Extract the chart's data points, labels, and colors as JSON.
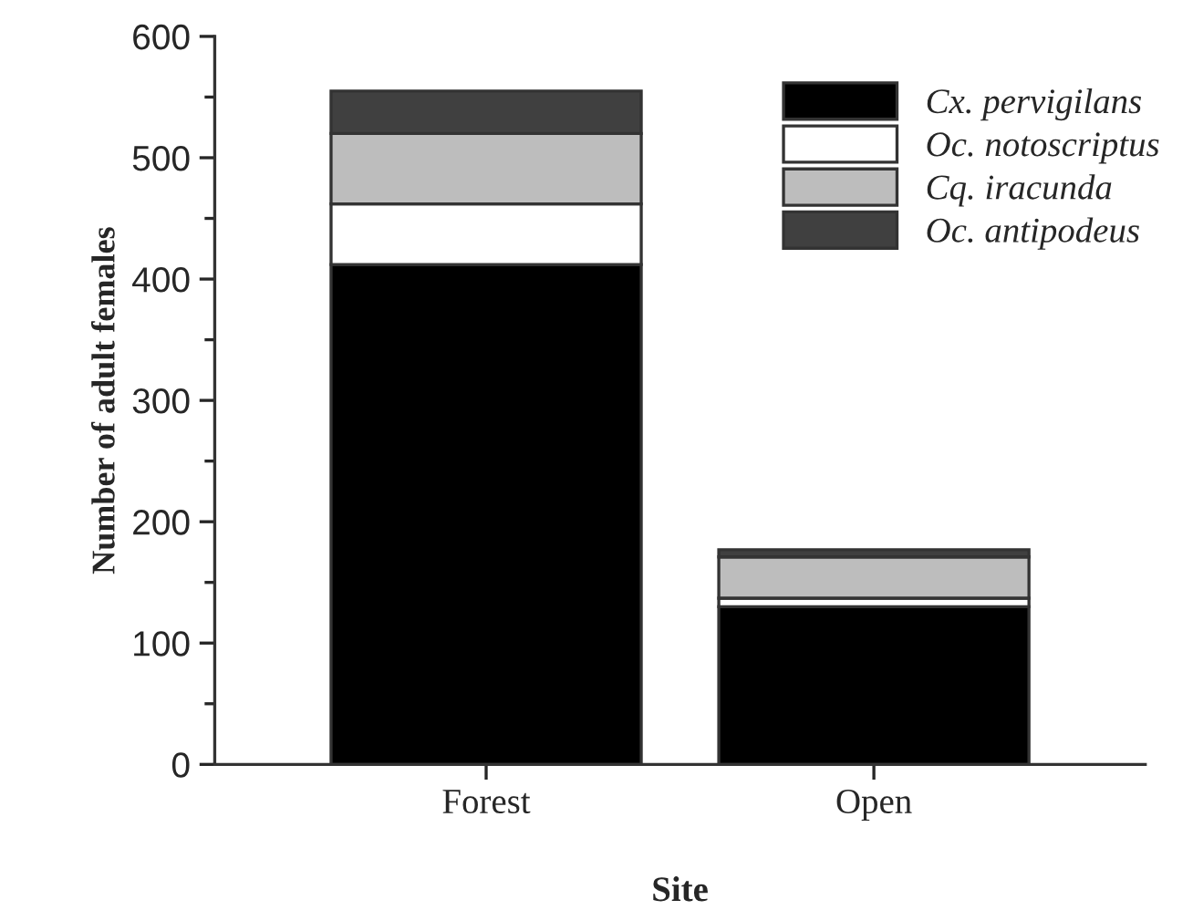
{
  "chart_data": {
    "type": "bar",
    "stacked": true,
    "xlabel": "Site",
    "ylabel": "Number of adult females",
    "categories": [
      "Forest",
      "Open"
    ],
    "series": [
      {
        "name": "Cx. pervigilans",
        "color": "#000000",
        "values": [
          412,
          130
        ]
      },
      {
        "name": "Oc. notoscriptus",
        "color": "#ffffff",
        "values": [
          50,
          7
        ]
      },
      {
        "name": "Cq. iracunda",
        "color": "#bdbdbd",
        "values": [
          58,
          34
        ]
      },
      {
        "name": "Oc. antipodeus",
        "color": "#404040",
        "values": [
          35,
          6
        ]
      }
    ],
    "ylim": [
      0,
      600
    ],
    "yticks": [
      0,
      100,
      200,
      300,
      400,
      500,
      600
    ],
    "legend": "top right"
  }
}
